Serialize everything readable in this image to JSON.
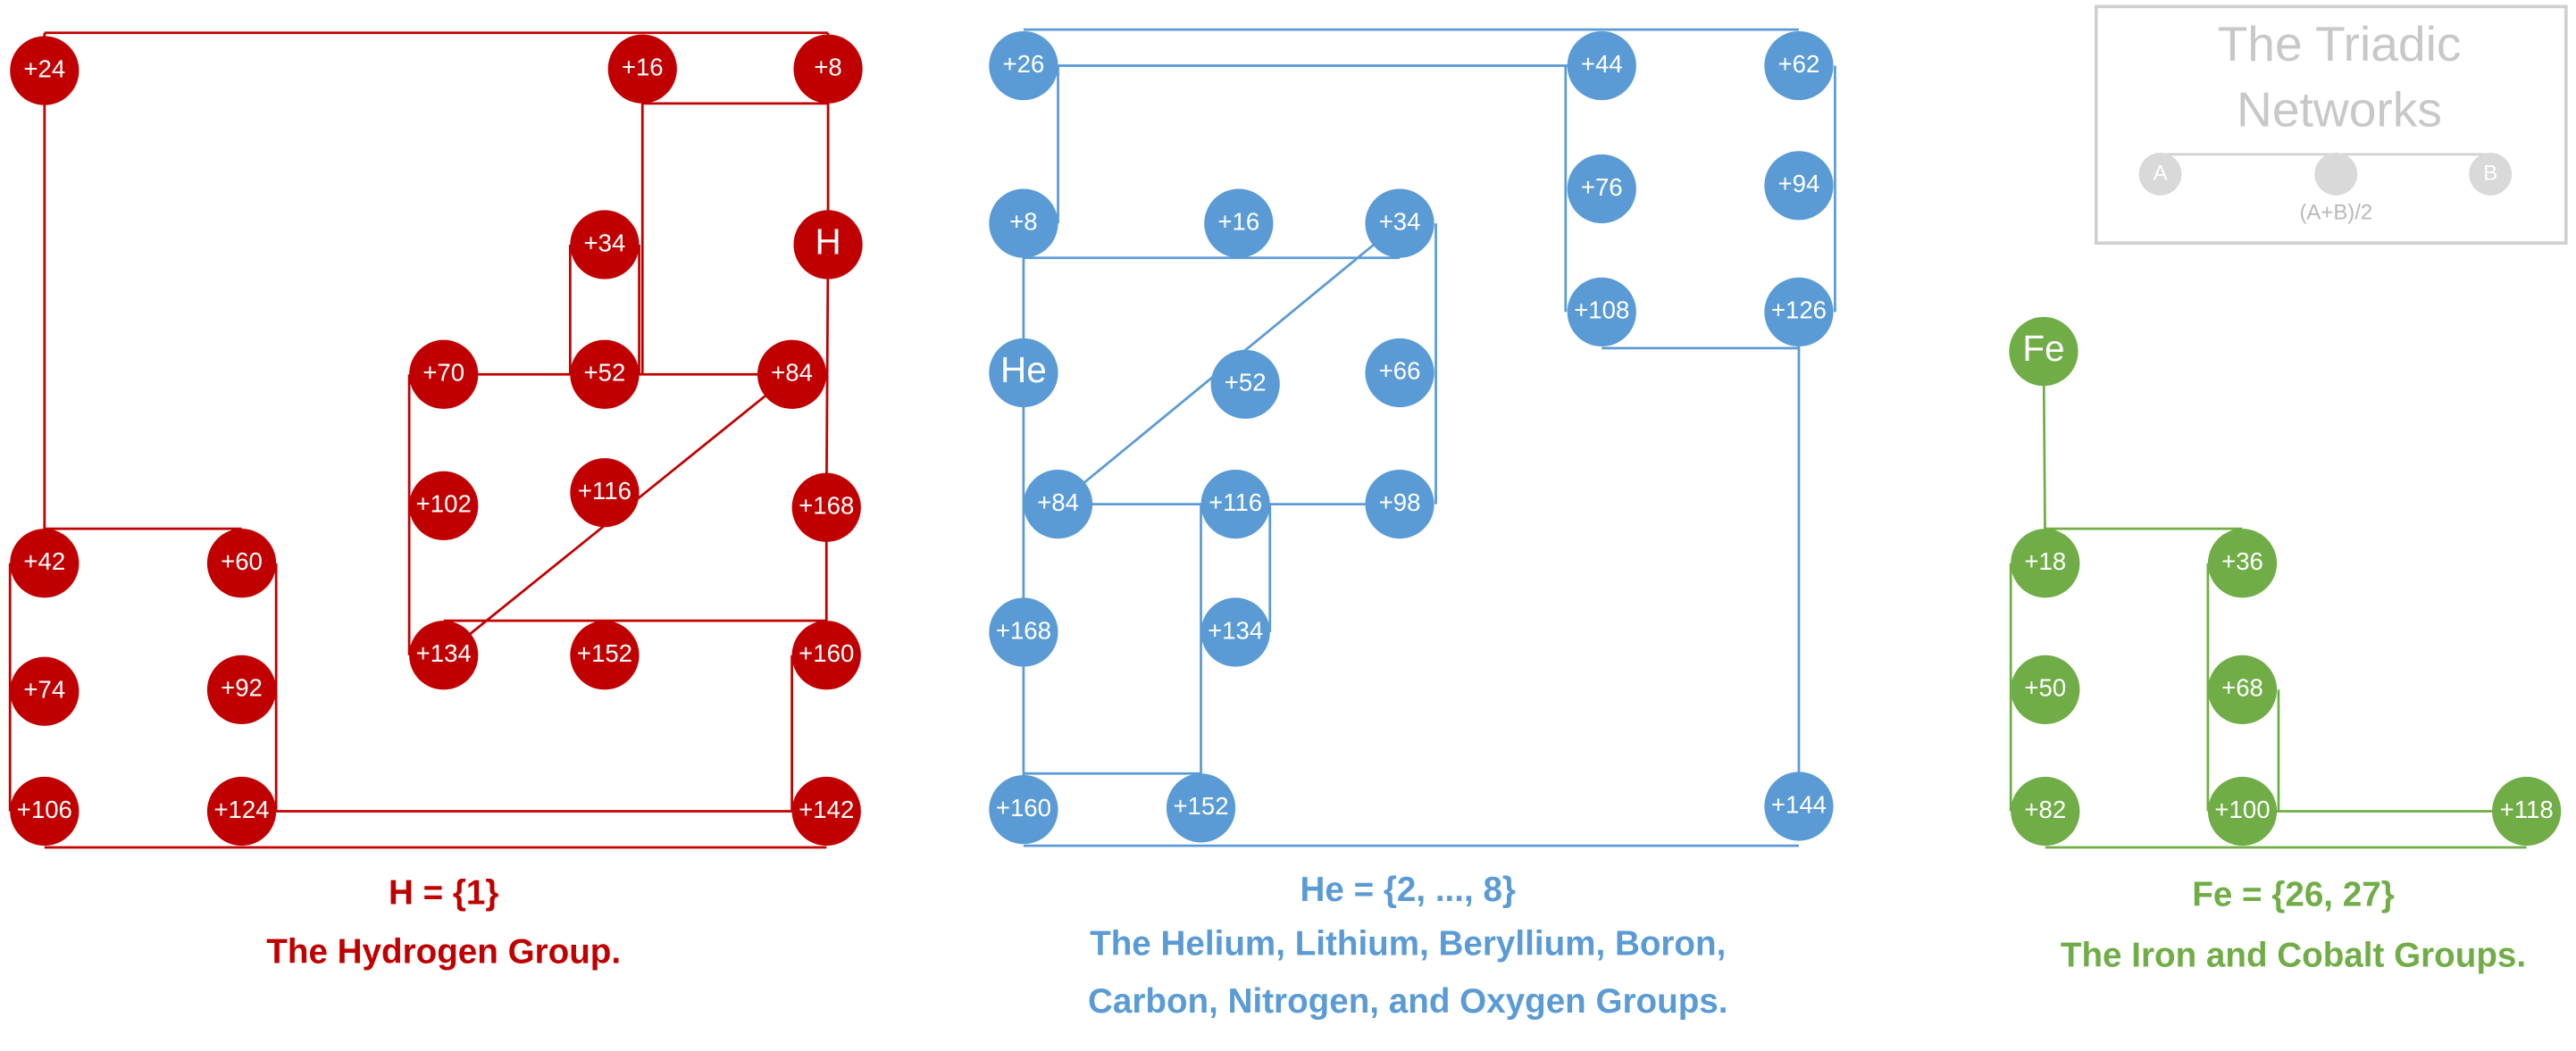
{
  "groups": [
    {
      "nodes": [
        "+24",
        "+16",
        "+8",
        "H",
        "+34",
        "+70",
        "+52",
        "+84",
        "+102",
        "+116",
        "+168",
        "+42",
        "+60",
        "+74",
        "+92",
        "+134",
        "+152",
        "+160",
        "+106",
        "+124",
        "+142"
      ],
      "formula": "H = {1}",
      "caption": [
        "The Hydrogen Group."
      ]
    },
    {
      "nodes": [
        "+26",
        "+44",
        "+62",
        "+8",
        "+16",
        "+34",
        "+76",
        "+94",
        "He",
        "+52",
        "+66",
        "+108",
        "+126",
        "+84",
        "+116",
        "+98",
        "+168",
        "+134",
        "+160",
        "+152",
        "+144"
      ],
      "formula": "He = {2, ..., 8}",
      "caption": [
        "The Helium, Lithium, Beryllium, Boron,",
        "Carbon, Nitrogen, and Oxygen Groups."
      ]
    },
    {
      "nodes": [
        "Fe",
        "+18",
        "+36",
        "+50",
        "+68",
        "+82",
        "+100",
        "+118"
      ],
      "formula": "Fe = {26, 27}",
      "caption": [
        "The Iron and Cobalt Groups."
      ]
    }
  ],
  "legend": {
    "title": [
      "The Triadic",
      "Networks"
    ],
    "node_a": "A",
    "node_b": "B",
    "midpoint": "(A+B)/2"
  }
}
